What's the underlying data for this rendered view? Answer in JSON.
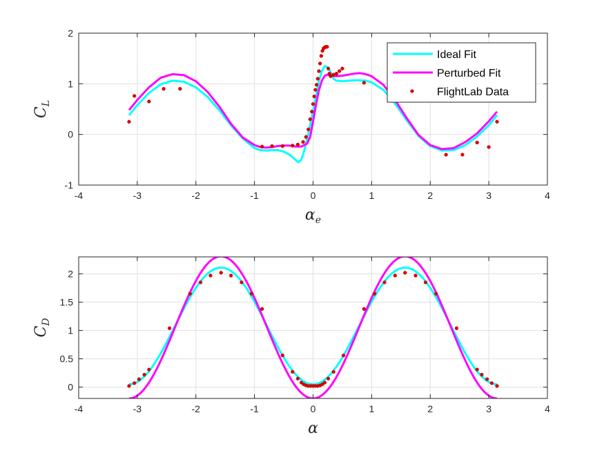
{
  "colors": {
    "ideal": "#00FFFF",
    "perturbed": "#FF00FF",
    "flightlab": "#E00000",
    "grid": "#DFDFDF",
    "axis": "#262626"
  },
  "legend": {
    "placement": "top-right of top panel",
    "entries": [
      {
        "label": "Ideal Fit",
        "series": "ideal"
      },
      {
        "label": "Perturbed Fit",
        "series": "perturbed"
      },
      {
        "label": "FlightLab Data",
        "series": "flightlab"
      }
    ]
  },
  "chart_data": [
    {
      "type": "line",
      "id": "cl",
      "ylabel": {
        "main": "C",
        "sub": "L"
      },
      "xlabel": {
        "main": "α",
        "sub": "e"
      },
      "xlim": [
        -4,
        4
      ],
      "ylim": [
        -1,
        2
      ],
      "xticks": [
        -4,
        -3,
        -2,
        -1,
        0,
        1,
        2,
        3,
        4
      ],
      "yticks": [
        -1,
        0,
        1,
        2
      ],
      "grid": true,
      "series": [
        {
          "key": "ideal",
          "x": [
            -3.14,
            -3.0,
            -2.8,
            -2.6,
            -2.4,
            -2.2,
            -2.0,
            -1.8,
            -1.6,
            -1.4,
            -1.2,
            -1.0,
            -0.9,
            -0.8,
            -0.7,
            -0.6,
            -0.5,
            -0.4,
            -0.3,
            -0.25,
            -0.2,
            -0.15,
            -0.1,
            -0.05,
            0.0,
            0.05,
            0.1,
            0.15,
            0.2,
            0.25,
            0.3,
            0.35,
            0.4,
            0.5,
            0.6,
            0.7,
            0.8,
            0.9,
            1.0,
            1.2,
            1.4,
            1.6,
            1.8,
            2.0,
            2.2,
            2.4,
            2.6,
            2.8,
            3.0,
            3.14
          ],
          "y": [
            0.38,
            0.58,
            0.82,
            0.99,
            1.06,
            1.04,
            0.93,
            0.74,
            0.48,
            0.18,
            -0.08,
            -0.27,
            -0.31,
            -0.32,
            -0.31,
            -0.31,
            -0.34,
            -0.4,
            -0.5,
            -0.55,
            -0.5,
            -0.32,
            -0.08,
            0.18,
            0.45,
            0.75,
            1.05,
            1.25,
            1.35,
            1.33,
            1.23,
            1.1,
            1.06,
            1.05,
            1.06,
            1.07,
            1.07,
            1.06,
            1.03,
            0.88,
            0.61,
            0.28,
            -0.03,
            -0.23,
            -0.32,
            -0.31,
            -0.21,
            -0.04,
            0.18,
            0.38
          ]
        },
        {
          "key": "perturbed",
          "x": [
            -3.14,
            -3.0,
            -2.8,
            -2.6,
            -2.4,
            -2.2,
            -2.0,
            -1.8,
            -1.6,
            -1.4,
            -1.2,
            -1.0,
            -0.9,
            -0.8,
            -0.7,
            -0.6,
            -0.5,
            -0.4,
            -0.3,
            -0.2,
            -0.1,
            -0.05,
            0.0,
            0.05,
            0.1,
            0.15,
            0.2,
            0.25,
            0.3,
            0.4,
            0.5,
            0.6,
            0.7,
            0.8,
            0.9,
            1.0,
            1.2,
            1.4,
            1.6,
            1.8,
            2.0,
            2.2,
            2.4,
            2.6,
            2.8,
            3.0,
            3.14
          ],
          "y": [
            0.48,
            0.68,
            0.93,
            1.12,
            1.19,
            1.17,
            1.05,
            0.84,
            0.55,
            0.21,
            -0.06,
            -0.21,
            -0.25,
            -0.26,
            -0.25,
            -0.23,
            -0.22,
            -0.22,
            -0.24,
            -0.24,
            -0.18,
            -0.05,
            0.25,
            0.58,
            0.87,
            1.06,
            1.16,
            1.18,
            1.16,
            1.15,
            1.16,
            1.18,
            1.2,
            1.21,
            1.19,
            1.15,
            0.98,
            0.68,
            0.32,
            -0.01,
            -0.21,
            -0.29,
            -0.27,
            -0.15,
            0.02,
            0.26,
            0.45
          ]
        },
        {
          "key": "flightlab",
          "x": [
            -3.14,
            -3.05,
            -2.8,
            -2.55,
            -2.27,
            -0.87,
            -0.7,
            -0.52,
            -0.35,
            -0.26,
            -0.17,
            -0.12,
            -0.08,
            -0.05,
            -0.02,
            0.0,
            0.02,
            0.04,
            0.06,
            0.08,
            0.1,
            0.12,
            0.14,
            0.16,
            0.18,
            0.2,
            0.22,
            0.24,
            0.26,
            0.28,
            0.3,
            0.35,
            0.4,
            0.45,
            0.5,
            0.87,
            2.27,
            2.55,
            2.8,
            3.0,
            3.14
          ],
          "y": [
            0.25,
            0.76,
            0.65,
            0.9,
            0.9,
            -0.24,
            -0.23,
            -0.23,
            -0.22,
            -0.2,
            -0.15,
            -0.05,
            0.1,
            0.3,
            0.45,
            0.6,
            0.75,
            0.88,
            0.98,
            1.1,
            1.25,
            1.4,
            1.55,
            1.65,
            1.7,
            1.72,
            1.73,
            1.73,
            1.3,
            1.2,
            1.15,
            1.18,
            1.2,
            1.25,
            1.3,
            1.02,
            -0.4,
            -0.4,
            -0.16,
            -0.25,
            0.25
          ]
        }
      ]
    },
    {
      "type": "line",
      "id": "cd",
      "ylabel": {
        "main": "C",
        "sub": "D"
      },
      "xlabel": {
        "main": "α",
        "sub": ""
      },
      "xlim": [
        -4,
        4
      ],
      "ylim": [
        -0.2,
        2.3
      ],
      "xticks": [
        -4,
        -3,
        -2,
        -1,
        0,
        1,
        2,
        3,
        4
      ],
      "yticks": [
        0,
        0.5,
        1,
        1.5,
        2
      ],
      "grid": true,
      "series": [
        {
          "key": "ideal",
          "formula": {
            "offset": 0.05,
            "amp": 2.06
          },
          "note_range": [
            -3.1416,
            3.1416
          ]
        },
        {
          "key": "perturbed",
          "formula": {
            "offset": -0.2,
            "amp": 2.51
          },
          "note_range": [
            -3.1416,
            3.1416
          ]
        },
        {
          "key": "flightlab",
          "x": [
            -3.14,
            -3.05,
            -2.97,
            -2.88,
            -2.8,
            -2.45,
            -2.1,
            -1.92,
            -1.75,
            -1.57,
            -1.4,
            -1.22,
            -1.05,
            -0.87,
            -0.52,
            -0.35,
            -0.26,
            -0.2,
            -0.16,
            -0.12,
            -0.08,
            -0.04,
            0.0,
            0.04,
            0.08,
            0.12,
            0.16,
            0.2,
            0.26,
            0.35,
            0.52,
            0.87,
            1.05,
            1.22,
            1.4,
            1.57,
            1.75,
            1.92,
            2.1,
            2.45,
            2.8,
            2.88,
            2.97,
            3.05,
            3.14
          ],
          "y": [
            0.02,
            0.07,
            0.14,
            0.22,
            0.31,
            1.04,
            1.65,
            1.85,
            1.97,
            2.02,
            1.97,
            1.85,
            1.65,
            1.38,
            0.56,
            0.27,
            0.15,
            0.08,
            0.05,
            0.03,
            0.02,
            0.02,
            0.02,
            0.02,
            0.02,
            0.03,
            0.05,
            0.08,
            0.15,
            0.27,
            0.56,
            1.38,
            1.65,
            1.85,
            1.97,
            2.02,
            1.97,
            1.85,
            1.65,
            1.04,
            0.31,
            0.22,
            0.14,
            0.07,
            0.02
          ]
        }
      ]
    }
  ]
}
